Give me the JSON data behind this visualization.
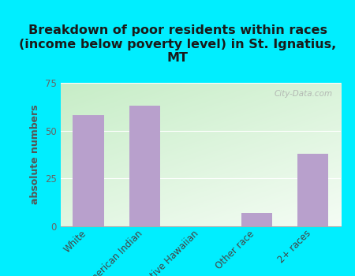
{
  "title": "Breakdown of poor residents within races\n(income below poverty level) in St. Ignatius,\nMT",
  "categories": [
    "White",
    "American Indian",
    "Native Hawaiian",
    "Other race",
    "2+ races"
  ],
  "values": [
    58,
    63,
    0,
    7,
    38
  ],
  "bar_color": "#b8a0cc",
  "ylabel": "absolute numbers",
  "ylim": [
    0,
    75
  ],
  "yticks": [
    0,
    25,
    50,
    75
  ],
  "background_outer": "#00eeff",
  "background_inner_topleft": "#c8e8c8",
  "background_inner_bottomright": "#f5faf5",
  "watermark": "City-Data.com",
  "title_fontsize": 11.5,
  "ylabel_fontsize": 9,
  "tick_fontsize": 8.5,
  "title_color": "#1a1a1a",
  "ylabel_color": "#555555"
}
